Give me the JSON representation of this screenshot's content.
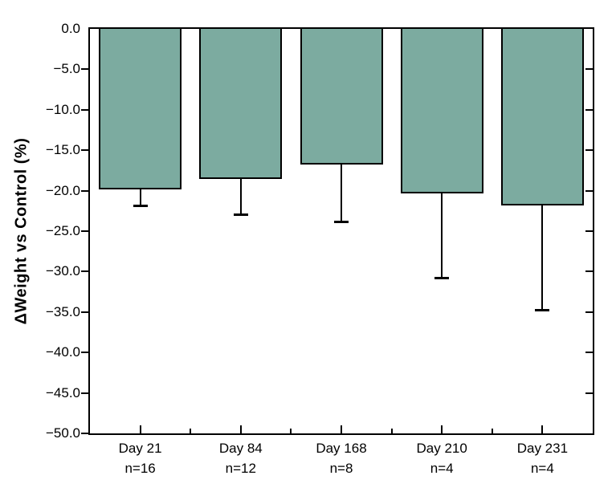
{
  "figure": {
    "background_color": "#ffffff"
  },
  "chart_data": {
    "type": "bar",
    "title": "",
    "xlabel": "",
    "ylabel": "ΔWeight vs Control (%)",
    "ylim": [
      -50,
      0
    ],
    "grid": false,
    "legend": null,
    "ytick_values": [
      0,
      -5,
      -10,
      -15,
      -20,
      -25,
      -30,
      -35,
      -40,
      -45,
      -50
    ],
    "ytick_labels": [
      "0.0",
      "−5.0",
      "−10.0",
      "−15.0",
      "−20.0",
      "−25.0",
      "−30.0",
      "−35.0",
      "−40.0",
      "−45.0",
      "−50.0"
    ],
    "categories": [
      "Day 21",
      "Day 84",
      "Day 168",
      "Day 210",
      "Day 231"
    ],
    "category_sublabels": [
      "n=16",
      "n=12",
      "n=8",
      "n=4",
      "n=4"
    ],
    "series": [
      {
        "name": "ΔWeight vs Control (%)",
        "values": [
          -19.8,
          -18.6,
          -16.8,
          -20.3,
          -21.8
        ],
        "errors_lower": [
          2.1,
          4.4,
          7.1,
          10.6,
          13.0
        ]
      }
    ],
    "bar_fill_color": "#7CABA0",
    "bar_border_color": "#000000",
    "error_bar_color": "#000000",
    "axis_color": "#000000",
    "tick_style": {
      "left": "out",
      "right": "in",
      "bottom": "in",
      "minor_bottom_between_categories": true
    }
  }
}
